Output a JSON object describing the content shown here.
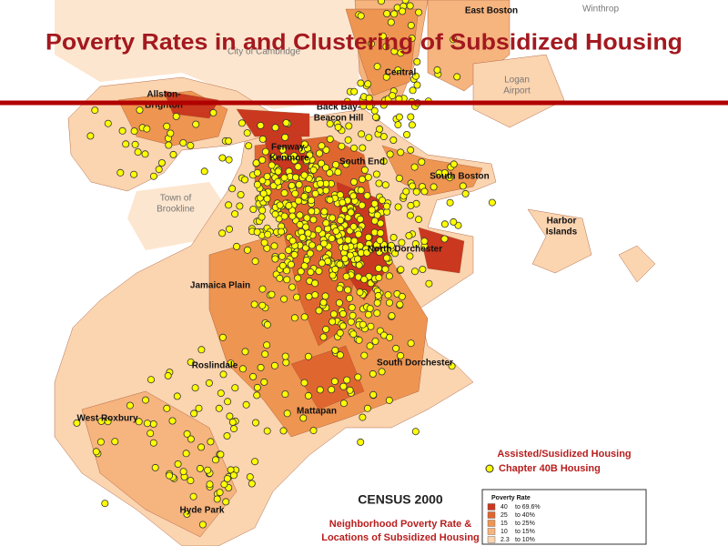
{
  "title": "Poverty Rates in and Clustering of Subsidized Housing",
  "map_labels": [
    {
      "lines": [
        "East Boston"
      ],
      "style": "bold"
    },
    {
      "lines": [
        "Winthrop"
      ],
      "style": "grey"
    },
    {
      "lines": [
        "City of Cambridge"
      ],
      "style": "grey"
    },
    {
      "lines": [
        "Logan",
        "Airport"
      ],
      "style": "grey"
    },
    {
      "lines": [
        "Central"
      ],
      "style": "bold"
    },
    {
      "lines": [
        "Allston-",
        "Brighton"
      ],
      "style": "bold"
    },
    {
      "lines": [
        "Back Bay-",
        "Beacon Hill"
      ],
      "style": "bold"
    },
    {
      "lines": [
        "Fenway-",
        "Kenmore"
      ],
      "style": "bold"
    },
    {
      "lines": [
        "South End"
      ],
      "style": "bold"
    },
    {
      "lines": [
        "South Boston"
      ],
      "style": "bold"
    },
    {
      "lines": [
        "Town of",
        "Brookline"
      ],
      "style": "grey"
    },
    {
      "lines": [
        "Harbor",
        "Islands"
      ],
      "style": "bold"
    },
    {
      "lines": [
        "North Dorchester"
      ],
      "style": "bold"
    },
    {
      "lines": [
        "Jamaica Plain"
      ],
      "style": "bold"
    },
    {
      "lines": [
        "Roslindale"
      ],
      "style": "bold"
    },
    {
      "lines": [
        "South Dorchester"
      ],
      "style": "bold"
    },
    {
      "lines": [
        "West Roxbury"
      ],
      "style": "bold"
    },
    {
      "lines": [
        "Mattapan"
      ],
      "style": "bold"
    },
    {
      "lines": [
        "Hyde Park"
      ],
      "style": "bold"
    }
  ],
  "legend": {
    "symbol_title": "Assisted/Susidized Housing",
    "symbol_label": "Chapter 40B Housing",
    "census": "CENSUS 2000",
    "caption_lines": [
      "Neighborhood Poverty Rate &",
      "Locations of Subsidized Housing"
    ],
    "box_title": "Poverty Rate",
    "rows": [
      {
        "low": "40",
        "high": "to 69.6%",
        "color": "#c9381f"
      },
      {
        "low": "25",
        "high": "to 40%",
        "color": "#e06630"
      },
      {
        "low": "15",
        "high": "to 25%",
        "color": "#ee9552"
      },
      {
        "low": "10",
        "high": "to 15%",
        "color": "#f6b47f"
      },
      {
        "low": "2.3",
        "high": "to 10%",
        "color": "#fbd4b0"
      }
    ]
  }
}
